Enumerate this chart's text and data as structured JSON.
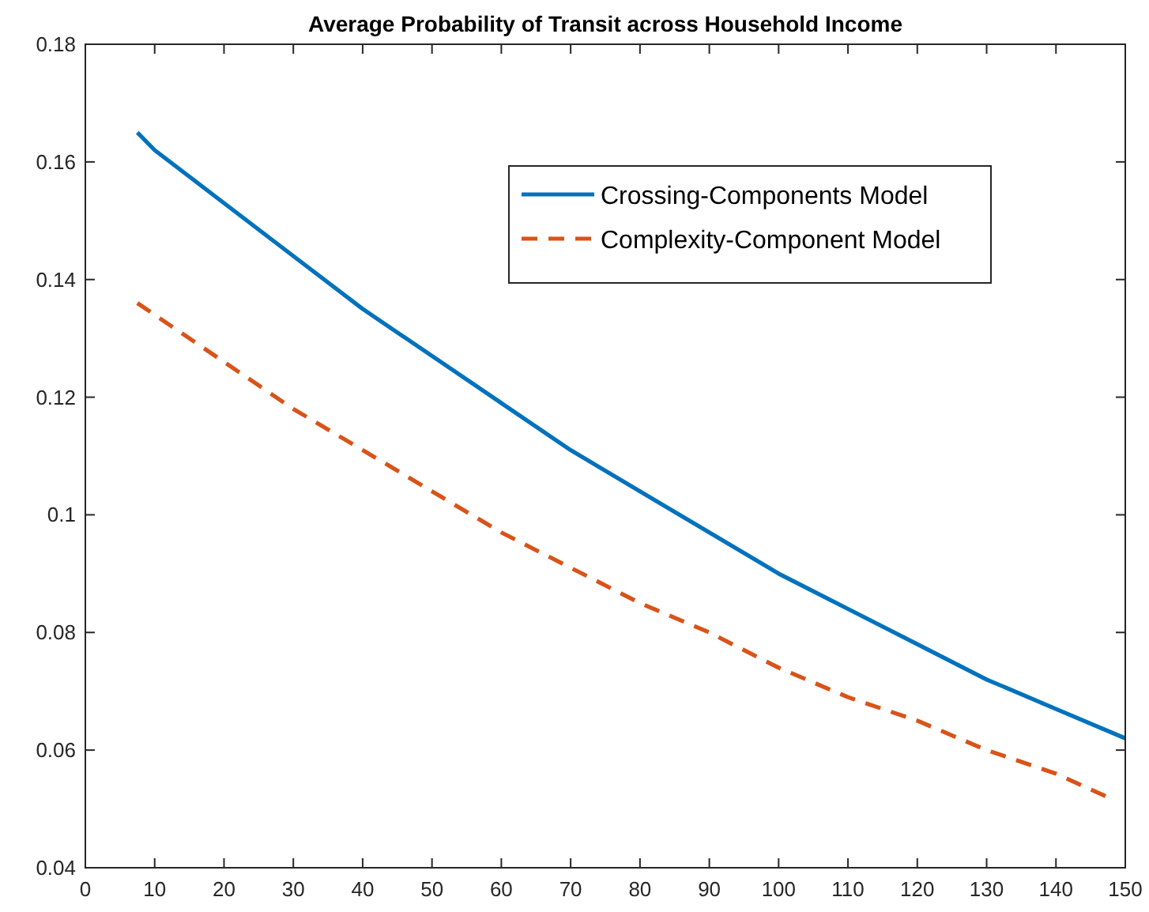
{
  "chart_data": {
    "type": "line",
    "title": "Average Probability of Transit across Household Income",
    "xlim": [
      0,
      150
    ],
    "xticks": [
      0,
      10,
      20,
      30,
      40,
      50,
      60,
      70,
      80,
      90,
      100,
      110,
      120,
      130,
      140,
      150
    ],
    "ylim": [
      0.04,
      0.18
    ],
    "yticks": [
      0.04,
      0.06,
      0.08,
      0.1,
      0.12,
      0.14,
      0.16,
      0.18
    ],
    "grid": false,
    "legend": "top right",
    "series": [
      {
        "name": "Crossing-Components Model",
        "color": "#0072bd",
        "line_style": "solid",
        "x": [
          7.5,
          10,
          20,
          30,
          40,
          50,
          60,
          70,
          80,
          90,
          100,
          110,
          120,
          130,
          140,
          150
        ],
        "values": [
          0.165,
          0.162,
          0.153,
          0.144,
          0.135,
          0.127,
          0.119,
          0.111,
          0.104,
          0.097,
          0.09,
          0.084,
          0.078,
          0.072,
          0.067,
          0.062
        ]
      },
      {
        "name": "Complexity-Component Model",
        "color": "#d95319",
        "line_style": "dashed",
        "x": [
          7.5,
          10,
          20,
          30,
          40,
          50,
          60,
          70,
          80,
          90,
          100,
          110,
          120,
          130,
          140,
          147.5
        ],
        "values": [
          0.136,
          0.134,
          0.126,
          0.118,
          0.111,
          0.104,
          0.097,
          0.091,
          0.085,
          0.08,
          0.074,
          0.069,
          0.065,
          0.06,
          0.056,
          0.052
        ]
      }
    ]
  }
}
